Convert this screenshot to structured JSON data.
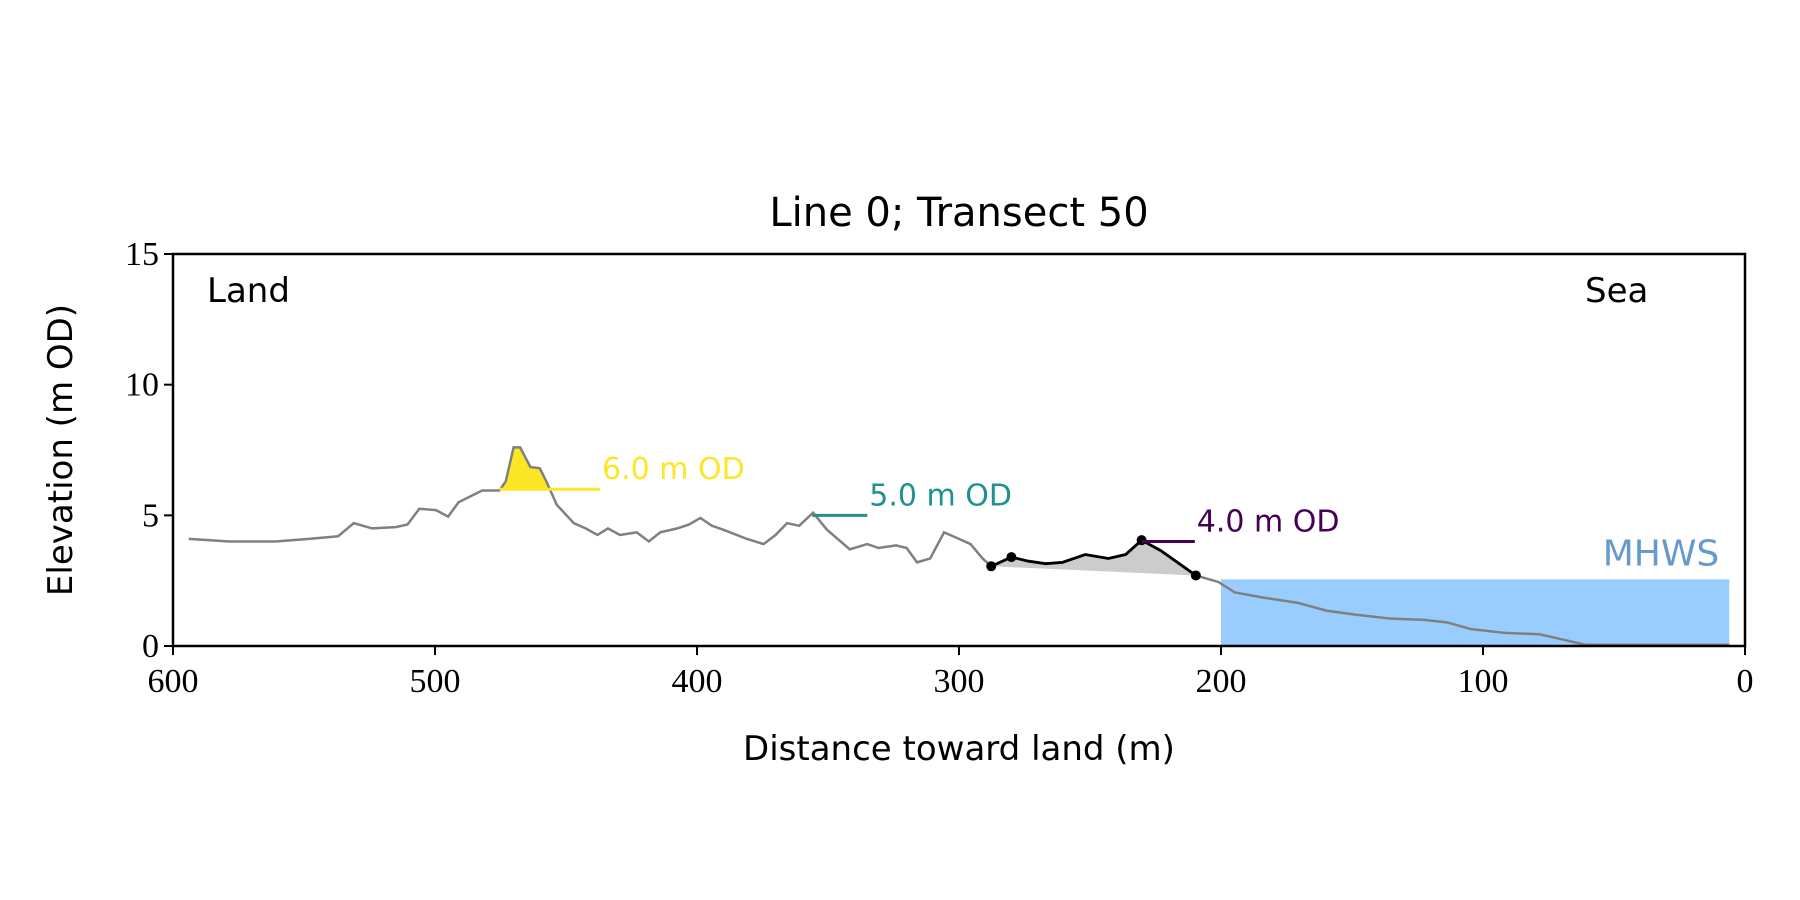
{
  "chart_data": {
    "type": "line",
    "title": "Line 0; Transect 50",
    "xlabel": "Distance toward land (m)",
    "ylabel": "Elevation (m OD)",
    "xlim": [
      600,
      0
    ],
    "ylim": [
      0,
      15
    ],
    "xticks": [
      600,
      500,
      400,
      300,
      200,
      100,
      0
    ],
    "yticks": [
      0,
      5,
      10,
      15
    ],
    "color": "#808080",
    "x": [
      594,
      578.5,
      561,
      548,
      537,
      531,
      524,
      515,
      510.5,
      506,
      499.6,
      495,
      491,
      482,
      475.4,
      473,
      470,
      467.5,
      463.6,
      460,
      457.5,
      453.5,
      447,
      442.5,
      438,
      434,
      429.4,
      423,
      418.4,
      414,
      407.5,
      403,
      398.7,
      394.3,
      390,
      381,
      374.6,
      370,
      365.6,
      361,
      355.7,
      350.4,
      341.7,
      335,
      330.7,
      324,
      320,
      316,
      311,
      305.7,
      300,
      295.6,
      291,
      287.7,
      280,
      273.7,
      267,
      260.5,
      251.8,
      243,
      236.4,
      230.3,
      223,
      209.6,
      201,
      194.7,
      183.8,
      170.6,
      159.6,
      148.7,
      135.5,
      122.4,
      113.6,
      104.8,
      91.7,
      78.5,
      69.7,
      61,
      48,
      6
    ],
    "values": [
      4.1,
      4.0,
      4.0,
      4.1,
      4.2,
      4.7,
      4.5,
      4.55,
      4.65,
      5.25,
      5.2,
      4.95,
      5.5,
      5.95,
      5.95,
      6.3,
      7.6,
      7.6,
      6.85,
      6.8,
      6.3,
      5.4,
      4.7,
      4.5,
      4.25,
      4.5,
      4.25,
      4.35,
      4.0,
      4.35,
      4.5,
      4.65,
      4.9,
      4.6,
      4.45,
      4.1,
      3.9,
      4.25,
      4.7,
      4.6,
      5.1,
      4.45,
      3.7,
      3.9,
      3.75,
      3.85,
      3.75,
      3.2,
      3.35,
      4.35,
      4.1,
      3.9,
      3.35,
      3.05,
      3.4,
      3.25,
      3.15,
      3.2,
      3.5,
      3.35,
      3.5,
      4.05,
      3.65,
      2.7,
      2.45,
      2.05,
      1.85,
      1.65,
      1.35,
      1.2,
      1.05,
      1.0,
      0.9,
      0.65,
      0.5,
      0.45,
      0.25,
      0.05,
      0.05,
      0.05
    ],
    "highlight": {
      "color": "#000000",
      "fill": "#cccccc",
      "x": [
        287.7,
        280,
        230.3,
        209.6
      ],
      "values": [
        3.05,
        3.4,
        4.05,
        2.7
      ]
    },
    "levels": [
      {
        "value": 6.0,
        "label": "6.0 m OD",
        "color": "#fde725",
        "from": 475.4,
        "to": 437,
        "fill": true
      },
      {
        "value": 5.0,
        "label": "5.0 m OD",
        "color": "#21918c",
        "from": 356,
        "to": 335,
        "fill": false
      },
      {
        "value": 4.0,
        "label": "4.0 m OD",
        "color": "#440154",
        "from": 230.3,
        "to": 210,
        "fill": false
      }
    ],
    "mhws": {
      "label": "MHWS",
      "value": 2.55,
      "from": 200,
      "to": 6,
      "color": "#99ccff",
      "label_color": "#6699cc"
    },
    "annotations": [
      {
        "text": "Land"
      },
      {
        "text": "Sea"
      }
    ]
  }
}
